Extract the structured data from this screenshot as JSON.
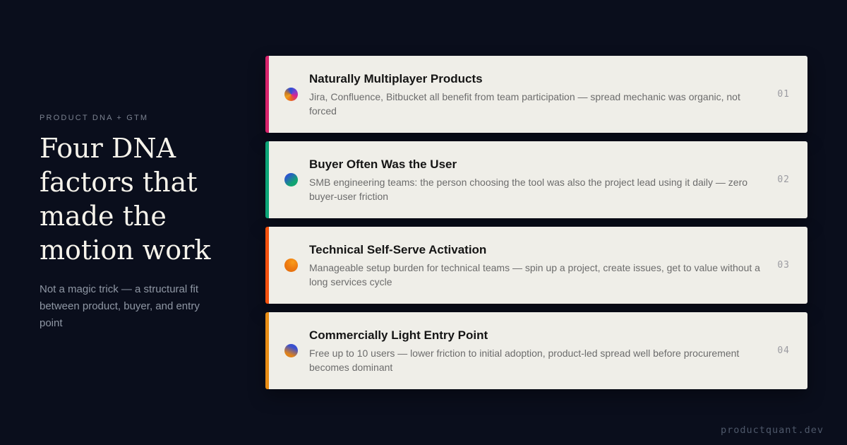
{
  "page": {
    "footer_domain": "productquant.dev"
  },
  "colors": {
    "background": "#0a0e1c",
    "card_background": "#efeee8",
    "hero_title": "#f6f3eb",
    "muted_text": "#8f97a4"
  },
  "hero": {
    "eyebrow": "PRODUCT DNA + GTM",
    "title": "Four DNA factors that made the motion work",
    "subtitle": "Not a magic trick — a structural fit between product, buyer, and entry point"
  },
  "cards": [
    {
      "number": "01",
      "title": "Naturally Multiplayer Products",
      "description": "Jira, Confluence, Bitbucket all benefit from team participation — spread mechanic was organic, not forced",
      "accent_color": "#d6246c",
      "icon": "gradient-orb-icon",
      "icon_gradient": "conic-gradient(from 0deg, #3150d2 0deg, #7a3fd0 55deg, #d9258f 110deg, #e8641f 180deg, #efa01f 240deg, #c77a28 285deg, #3150d2 345deg)"
    },
    {
      "number": "02",
      "title": "Buyer Often Was the User",
      "description": "SMB engineering teams: the person choosing the tool was also the project lead using it daily — zero buyer-user friction",
      "accent_color": "#0da578",
      "icon": "gradient-orb-icon",
      "icon_gradient": "linear-gradient(140deg, #2b57cc 22%, #11a371 68%)"
    },
    {
      "number": "03",
      "title": "Technical Self-Serve Activation",
      "description": "Manageable setup burden for technical teams — spin up a project, create issues, get to value without a long services cycle",
      "accent_color": "#f4520e",
      "icon": "gradient-orb-icon",
      "icon_gradient": "radial-gradient(circle at 62% 28%, #f89c1b 0%, #ef7c10 45%, #df660d 100%)"
    },
    {
      "number": "04",
      "title": "Commercially Light Entry Point",
      "description": "Free up to 10 users — lower friction to initial adoption, product-led spread well before procurement becomes dominant",
      "accent_color": "#e88d15",
      "icon": "gradient-orb-icon",
      "icon_gradient": "linear-gradient(205deg, #3a50cf 28%, #e0821a 74%)"
    }
  ]
}
